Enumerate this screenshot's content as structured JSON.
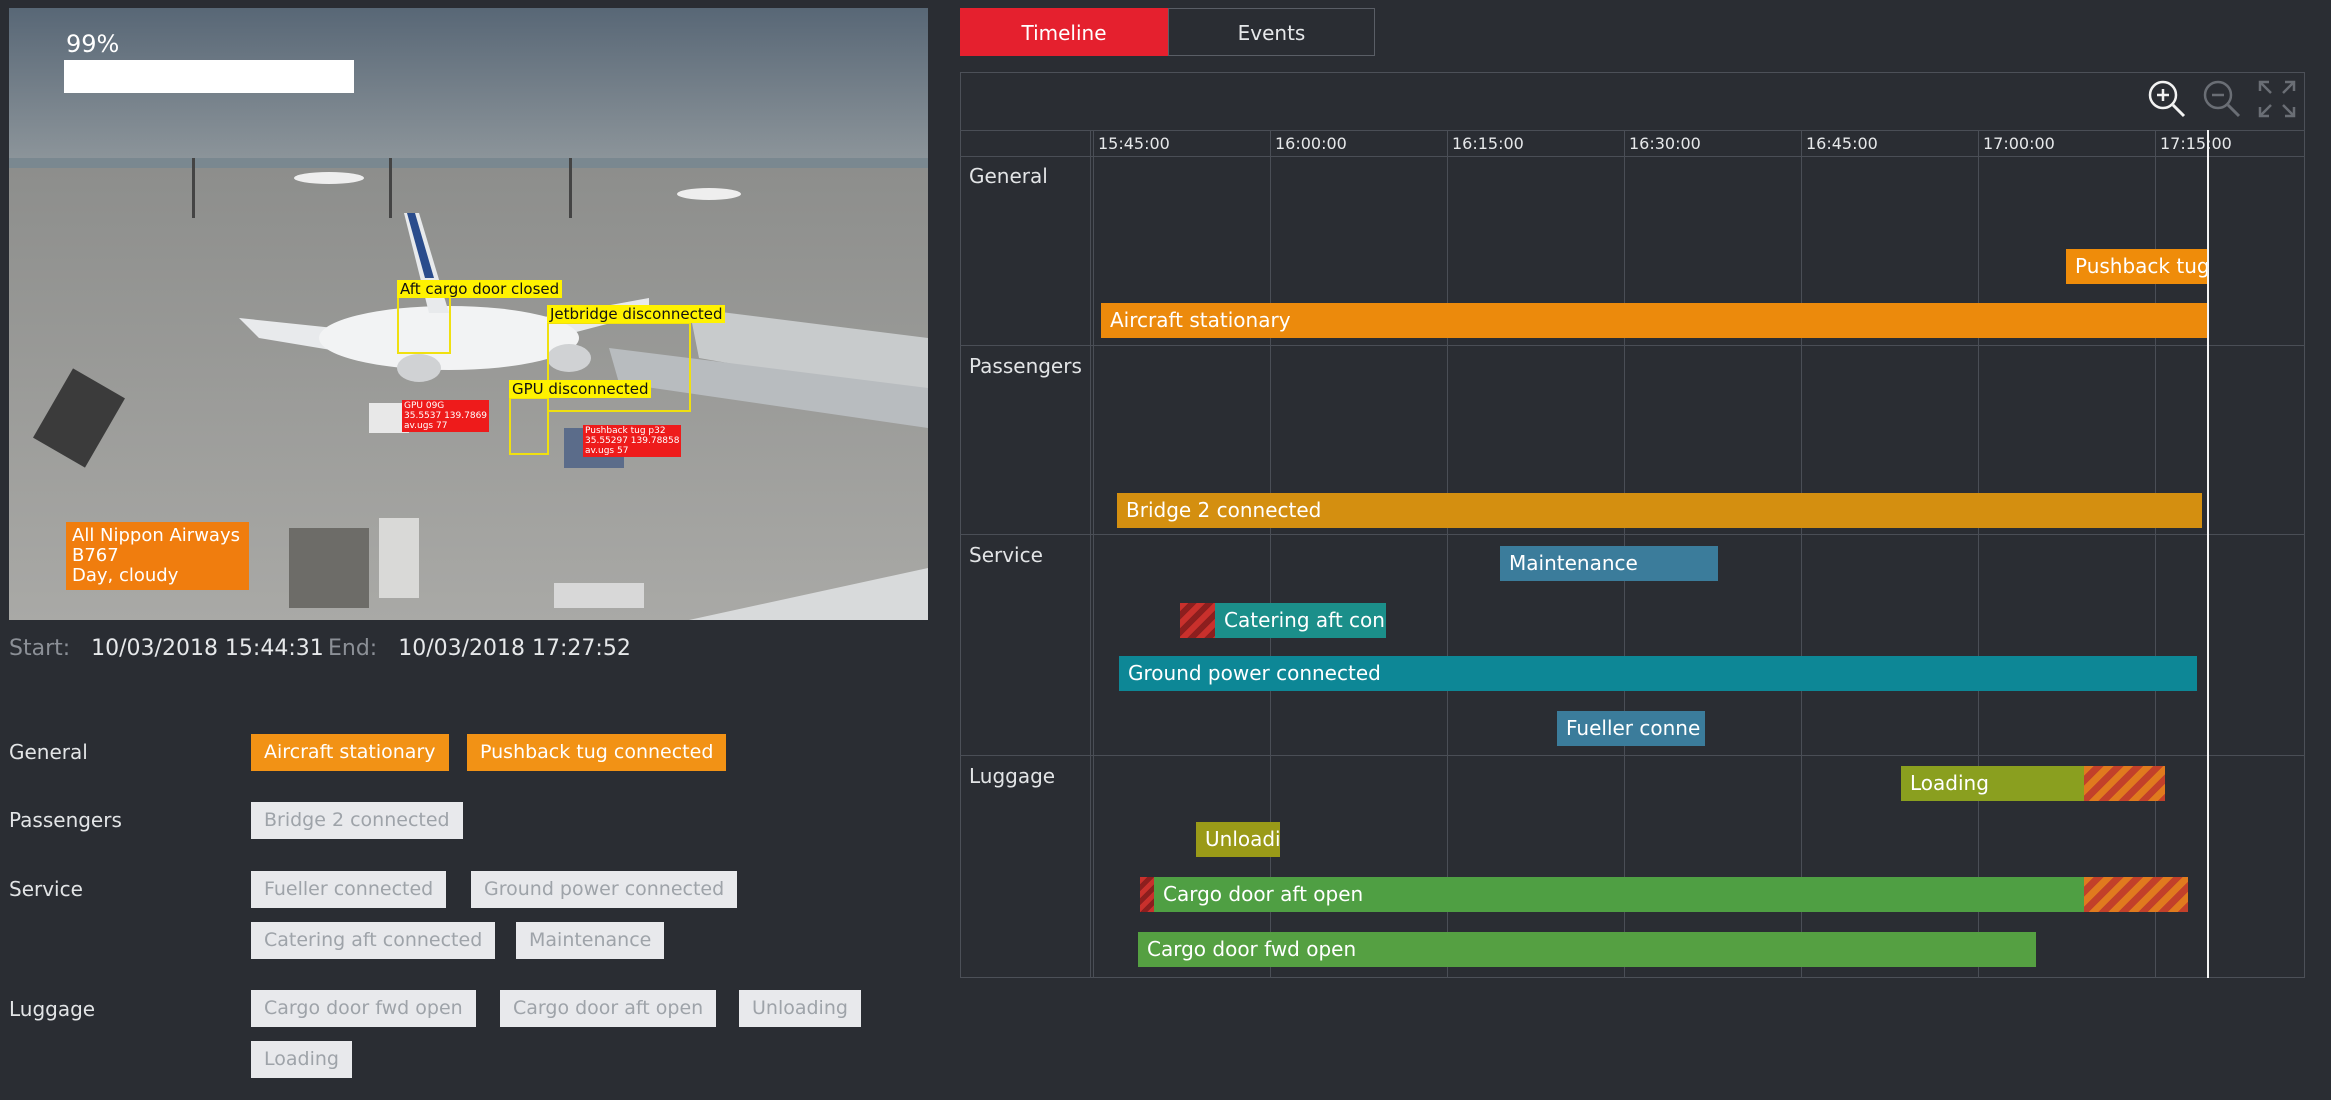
{
  "video": {
    "confidence": "99%",
    "flight_info": [
      "All Nippon Airways",
      "B767",
      "Day, cloudy"
    ],
    "detections": {
      "aft_cargo": "Aft cargo door closed",
      "jetbridge": "Jetbridge disconnected",
      "gpu": "GPU disconnected",
      "gpu_tag": [
        "GPU 09G",
        "35.5537 139.7869",
        "av.ugs 77"
      ],
      "pushback_tag": [
        "Pushback tug p32",
        "35.55297 139.78858",
        "av.ugs 57"
      ]
    }
  },
  "times": {
    "start_label": "Start:",
    "start_value": "10/03/2018 15:44:31",
    "end_label": "End:",
    "end_value": "10/03/2018 17:27:52"
  },
  "categories": [
    {
      "name": "General",
      "chips": [
        {
          "label": "Aircraft stationary",
          "active": true
        },
        {
          "label": "Pushback tug connected",
          "active": true
        }
      ]
    },
    {
      "name": "Passengers",
      "chips": [
        {
          "label": "Bridge 2 connected",
          "active": false
        }
      ]
    },
    {
      "name": "Service",
      "chips": [
        {
          "label": "Fueller connected",
          "active": false
        },
        {
          "label": "Ground power connected",
          "active": false
        },
        {
          "label": "Catering aft connected",
          "active": false
        },
        {
          "label": "Maintenance",
          "active": false
        }
      ]
    },
    {
      "name": "Luggage",
      "chips": [
        {
          "label": "Cargo door fwd open",
          "active": false
        },
        {
          "label": "Cargo door aft open",
          "active": false
        },
        {
          "label": "Unloading",
          "active": false
        },
        {
          "label": "Loading",
          "active": false
        }
      ]
    }
  ],
  "tabs": [
    {
      "label": "Timeline",
      "active": true
    },
    {
      "label": "Events",
      "active": false
    }
  ],
  "timeline": {
    "ticks": [
      "15:45:00",
      "16:00:00",
      "16:15:00",
      "16:30:00",
      "16:45:00",
      "17:00:00",
      "17:15:00"
    ],
    "rows": [
      "General",
      "Passengers",
      "Service",
      "Luggage"
    ],
    "bars": [
      {
        "label": "Pushback tug",
        "color": "#ef8c0a"
      },
      {
        "label": "Aircraft stationary",
        "color": "#ec8a0c"
      },
      {
        "label": "Bridge 2 connected",
        "color": "#d48f10"
      },
      {
        "label": "Maintenance",
        "color": "#3b7c9b"
      },
      {
        "label": "Catering aft con",
        "color": "#1b8f8a"
      },
      {
        "label": "Ground power connected",
        "color": "#0d8796"
      },
      {
        "label": "Fueller conne",
        "color": "#3b7c9b"
      },
      {
        "label": "Loading",
        "color": "#8a9f1f"
      },
      {
        "label": "Unloadi",
        "color": "#9a9a18"
      },
      {
        "label": "Cargo door aft open",
        "color": "#4f9f43"
      },
      {
        "label": "Cargo door fwd open",
        "color": "#55a042"
      }
    ],
    "zoom": {
      "in": "zoom-in-icon",
      "out": "zoom-out-icon",
      "fit": "fit-screen-icon"
    }
  }
}
